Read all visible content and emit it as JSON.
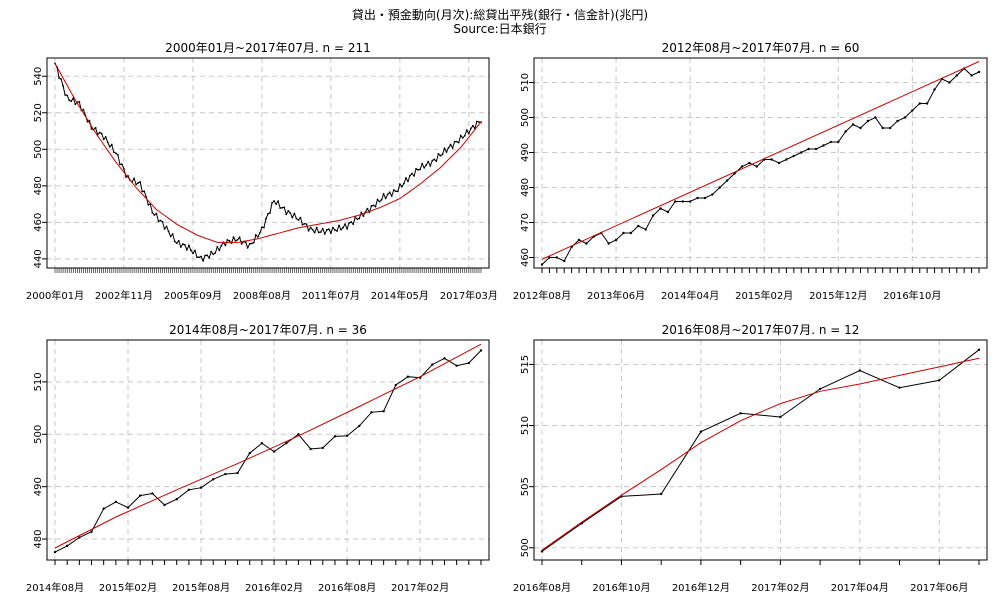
{
  "figure": {
    "title": "貸出・預金動向(月次):総貸出平残(銀行・信金計)(兆円)",
    "subtitle": "Source:日本銀行"
  },
  "chart_data": [
    {
      "type": "line",
      "title": "2000年01月~2017年07月. n = 211",
      "ylim": [
        435,
        550
      ],
      "yticks": [
        440,
        460,
        480,
        500,
        520,
        540
      ],
      "xticklabels": [
        "2000年01月",
        "2002年11月",
        "2005年09月",
        "2008年08月",
        "2011年07月",
        "2014年05月",
        "2017年03月"
      ],
      "grid": true,
      "series": [
        {
          "color": "#000000",
          "x": [
            0,
            6,
            12,
            18,
            24,
            30,
            36,
            42,
            48,
            54,
            60,
            66,
            72,
            78,
            84,
            90,
            96,
            102,
            108,
            114,
            120,
            126,
            132,
            138,
            144,
            150,
            156,
            162,
            168,
            174,
            180,
            186,
            192,
            198,
            204,
            210
          ],
          "values": [
            547,
            528,
            525,
            512,
            507,
            498,
            484,
            481,
            466,
            458,
            449,
            446,
            440,
            443,
            449,
            451,
            447,
            456,
            472,
            466,
            462,
            456,
            455,
            456,
            458,
            463,
            468,
            474,
            477,
            484,
            490,
            493,
            499,
            504,
            510,
            516
          ]
        },
        {
          "color": "#cc0000",
          "x": [
            0,
            10,
            20,
            30,
            40,
            50,
            60,
            70,
            80,
            90,
            100,
            110,
            120,
            130,
            140,
            150,
            160,
            170,
            180,
            190,
            200,
            210
          ],
          "values": [
            547,
            527,
            509,
            493,
            479,
            467,
            459,
            453,
            449,
            449,
            451,
            454,
            457,
            459,
            461,
            464,
            468,
            473,
            481,
            490,
            501,
            515
          ]
        }
      ]
    },
    {
      "type": "line",
      "title": "2012年08月~2017年07月. n = 60",
      "ylim": [
        457,
        517
      ],
      "yticks": [
        460,
        470,
        480,
        490,
        500,
        510
      ],
      "xticklabels": [
        "2012年08月",
        "2013年06月",
        "2014年04月",
        "2015年02月",
        "2015年12月",
        "2016年10月"
      ],
      "grid": true,
      "series": [
        {
          "color": "#000000",
          "x": [
            0,
            1,
            2,
            3,
            4,
            5,
            6,
            7,
            8,
            9,
            10,
            11,
            12,
            13,
            14,
            15,
            16,
            17,
            18,
            19,
            20,
            21,
            22,
            23,
            24,
            25,
            26,
            27,
            28,
            29,
            30,
            31,
            32,
            33,
            34,
            35,
            36,
            37,
            38,
            39,
            40,
            41,
            42,
            43,
            44,
            45,
            46,
            47,
            48,
            49,
            50,
            51,
            52,
            53,
            54,
            55,
            56,
            57,
            58,
            59
          ],
          "values": [
            458,
            460,
            460,
            459,
            463,
            465,
            464,
            466,
            467,
            464,
            465,
            467,
            467,
            469,
            468,
            472,
            474,
            473,
            476,
            476,
            476,
            477,
            477,
            478,
            480,
            482,
            484,
            486,
            487,
            486,
            488,
            488,
            487,
            488,
            489,
            490,
            491,
            491,
            492,
            493,
            493,
            496,
            498,
            497,
            499,
            500,
            497,
            497,
            499,
            500,
            502,
            504,
            504,
            508,
            511,
            510,
            512,
            514,
            512,
            513
          ]
        },
        {
          "color": "#cc0000",
          "x": [
            0,
            59
          ],
          "values": [
            459.5,
            516
          ]
        }
      ]
    },
    {
      "type": "line",
      "title": "2014年08月~2017年07月. n = 36",
      "ylim": [
        476,
        518
      ],
      "yticks": [
        480,
        490,
        500,
        510
      ],
      "xticklabels": [
        "2014年08月",
        "2015年02月",
        "2015年08月",
        "2016年02月",
        "2016年08月",
        "2017年02月"
      ],
      "grid": true,
      "series": [
        {
          "color": "#000000",
          "x": [
            0,
            1,
            2,
            3,
            4,
            5,
            6,
            7,
            8,
            9,
            10,
            11,
            12,
            13,
            14,
            15,
            16,
            17,
            18,
            19,
            20,
            21,
            22,
            23,
            24,
            25,
            26,
            27,
            28,
            29,
            30,
            31,
            32,
            33,
            34,
            35
          ],
          "values": [
            477.5,
            478.7,
            480.3,
            481.4,
            485.8,
            487.1,
            486,
            488.3,
            488.7,
            486.5,
            487.6,
            489.4,
            489.8,
            491.4,
            492.4,
            492.6,
            496.4,
            498.3,
            496.7,
            498.3,
            500,
            497.2,
            497.4,
            499.6,
            499.7,
            501.6,
            504.2,
            504.4,
            509.4,
            511,
            510.8,
            513.3,
            514.5,
            513.1,
            513.6,
            516
          ]
        },
        {
          "color": "#cc0000",
          "x": [
            0,
            5,
            10,
            15,
            20,
            25,
            30,
            35
          ],
          "values": [
            478.3,
            484.2,
            489.4,
            494.4,
            499.7,
            505.3,
            511,
            517.2
          ]
        }
      ]
    },
    {
      "type": "line",
      "title": "2016年08月~2017年07月. n = 12",
      "ylim": [
        499,
        517
      ],
      "yticks": [
        500,
        505,
        510,
        515
      ],
      "xticklabels": [
        "2016年08月",
        "2016年10月",
        "2016年12月",
        "2017年02月",
        "2017年04月",
        "2017年06月"
      ],
      "grid": true,
      "series": [
        {
          "color": "#000000",
          "x": [
            0,
            1,
            2,
            3,
            4,
            5,
            6,
            7,
            8,
            9,
            10,
            11
          ],
          "values": [
            499.7,
            502,
            504.2,
            504.4,
            509.5,
            511,
            510.7,
            513,
            514.5,
            513.1,
            513.7,
            516.2
          ]
        },
        {
          "color": "#cc0000",
          "x": [
            0,
            1,
            2,
            3,
            4,
            5,
            6,
            7,
            8,
            9,
            10,
            11
          ],
          "values": [
            499.8,
            502.1,
            504.3,
            506.4,
            508.6,
            510.4,
            511.8,
            512.8,
            513.4,
            514.1,
            514.8,
            515.5
          ]
        }
      ]
    }
  ]
}
